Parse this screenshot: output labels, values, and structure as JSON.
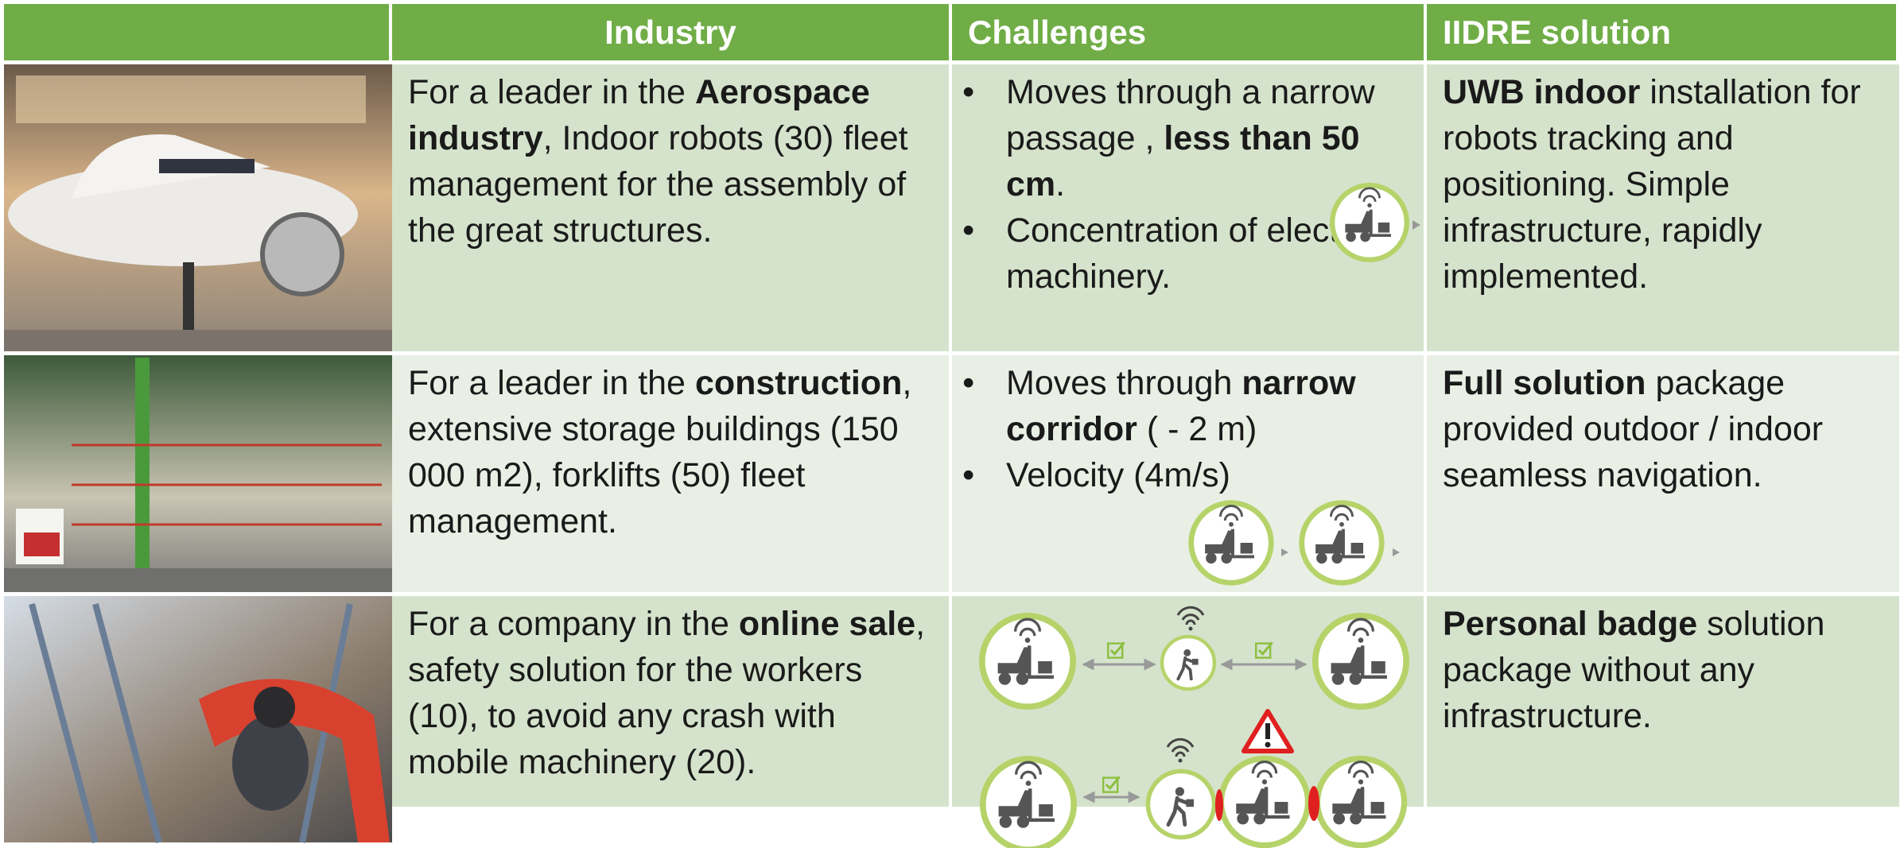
{
  "header": {
    "columns": [
      "Industry",
      "Challenges",
      "IIDRE solution"
    ]
  },
  "table": {
    "rows": [
      {
        "industry": [
          "For a leader in the ",
          {
            "bold": "Aerospace industry"
          },
          ", Indoor robots (30) fleet management for the assembly of the great structures."
        ],
        "challenges": [
          [
            "Moves through a narrow passage , ",
            {
              "bold": "less than 50 cm"
            },
            "."
          ],
          [
            "Concentration of electrical machinery."
          ]
        ],
        "solution": [
          {
            "bold": "UWB indoor"
          },
          " installation for robots tracking and positioning. Simple infrastructure, rapidly implemented."
        ]
      },
      {
        "industry": [
          "For a leader in the ",
          {
            "bold": "construction"
          },
          ", extensive storage buildings (150 000 m2), forklifts (50) fleet management."
        ],
        "challenges": [
          [
            "Moves through ",
            {
              "bold": "narrow corridor"
            },
            " ( - 2 m)"
          ],
          [
            "Velocity (4m/s)"
          ]
        ],
        "solution": [
          {
            "bold": "Full solution"
          },
          " package provided outdoor / indoor seamless navigation."
        ]
      },
      {
        "industry": [
          "For a company in the ",
          {
            "bold": "online sale"
          },
          ", safety solution for the workers (10), to avoid any crash with mobile machinery (20)."
        ],
        "solution": [
          {
            "bold": "Personal badge"
          },
          " solution package without any infrastructure."
        ]
      }
    ]
  }
}
